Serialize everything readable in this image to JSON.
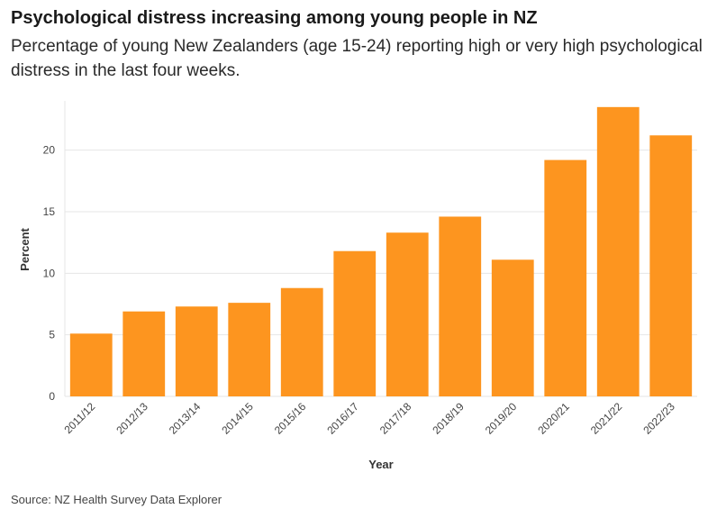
{
  "title": "Psychological distress increasing among young people in NZ",
  "subtitle": "Percentage of young New Zealanders (age 15-24) reporting high or very high psychological distress in the last four weeks.",
  "source": "Source: NZ Health Survey Data Explorer",
  "colors": {
    "bar": "#fd951f",
    "grid": "#e6e6e6"
  },
  "chart_data": {
    "type": "bar",
    "title": "Psychological distress increasing among young people in NZ",
    "xlabel": "Year",
    "ylabel": "Percent",
    "ylim": [
      0,
      24
    ],
    "yticks": [
      0,
      5,
      10,
      15,
      20
    ],
    "grid": true,
    "categories": [
      "2011/12",
      "2012/13",
      "2013/14",
      "2014/15",
      "2015/16",
      "2016/17",
      "2017/18",
      "2018/19",
      "2019/20",
      "2020/21",
      "2021/22",
      "2022/23"
    ],
    "values": [
      5.1,
      6.9,
      7.3,
      7.6,
      8.8,
      11.8,
      13.3,
      14.6,
      11.1,
      19.2,
      23.5,
      21.2
    ]
  }
}
